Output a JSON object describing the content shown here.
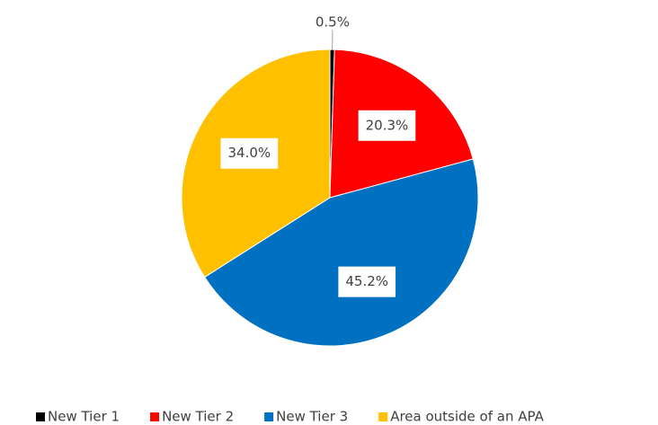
{
  "chart_data": {
    "type": "pie",
    "categories": [
      "New Tier 1",
      "New Tier 2",
      "New Tier 3",
      "Area outside of an APA"
    ],
    "values": [
      0.5,
      20.3,
      45.2,
      34.0
    ],
    "value_labels": [
      "0.5%",
      "20.3%",
      "45.2%",
      "34.0%"
    ],
    "colors": [
      "#000000",
      "#ff0000",
      "#0070c0",
      "#ffc000"
    ],
    "legend": "bottom"
  }
}
